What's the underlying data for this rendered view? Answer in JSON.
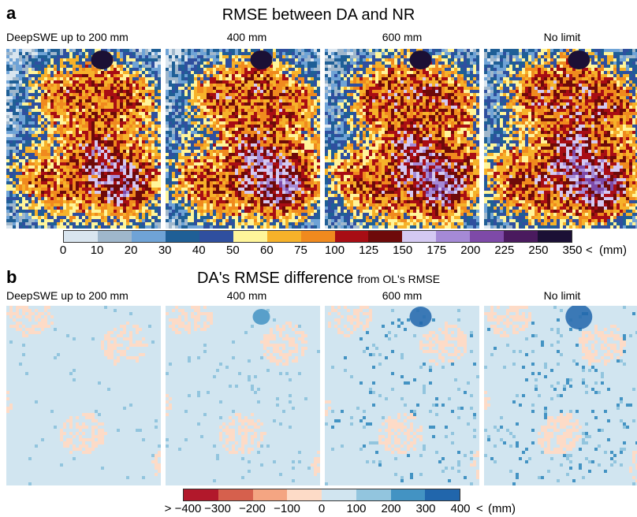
{
  "panel_a": {
    "letter": "a",
    "title": "RMSE between DA and NR",
    "maps": [
      {
        "label": "DeepSWE up to 200 mm"
      },
      {
        "label": "400 mm"
      },
      {
        "label": "600 mm"
      },
      {
        "label": "No limit"
      }
    ],
    "colorbar": {
      "ticks": [
        "0",
        "10",
        "20",
        "30",
        "40",
        "50",
        "60",
        "75",
        "100",
        "125",
        "150",
        "175",
        "200",
        "225",
        "250",
        "350"
      ],
      "overflow_symbol": "<",
      "unit": "(mm)",
      "colors": [
        "#d9e5ef",
        "#9fb7cc",
        "#6fa3d6",
        "#1f5f96",
        "#2f4f9f",
        "#fff59a",
        "#f6b22a",
        "#f08a1e",
        "#a80d14",
        "#6e0a0a",
        "#d4c9f2",
        "#a58ad6",
        "#7e4aa8",
        "#4a1a5e",
        "#1b1035"
      ]
    }
  },
  "panel_b": {
    "letter": "b",
    "title": "DA's RMSE difference",
    "title_suffix": "from OL's RMSE",
    "maps": [
      {
        "label": "DeepSWE up to 200 mm"
      },
      {
        "label": "400 mm"
      },
      {
        "label": "600 mm"
      },
      {
        "label": "No limit"
      }
    ],
    "colorbar": {
      "ticks": [
        "> −400",
        "−300",
        "−200",
        "−100",
        "0",
        "100",
        "200",
        "300",
        "400"
      ],
      "overflow_symbol": "<",
      "unit": "(mm)",
      "colors": [
        "#b2182b",
        "#d6604d",
        "#f4a582",
        "#fddbc7",
        "#d1e5f0",
        "#92c5de",
        "#4393c3",
        "#2166ac"
      ]
    }
  }
}
